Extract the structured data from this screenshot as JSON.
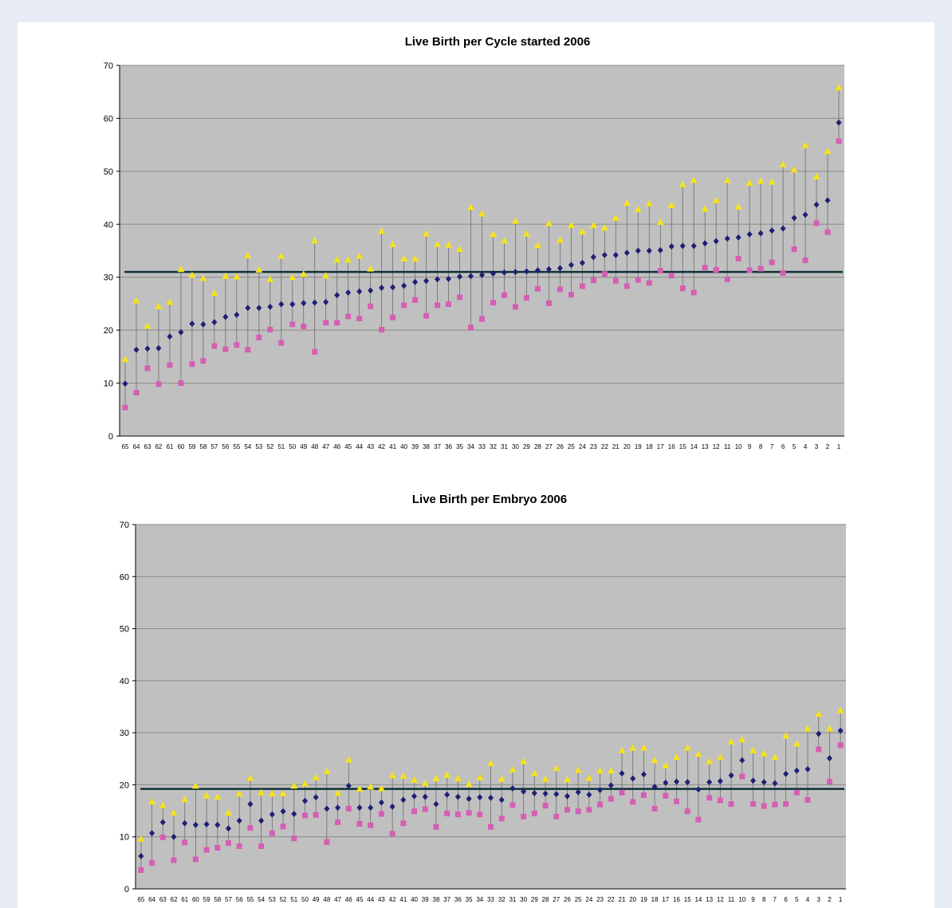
{
  "chart_data": [
    {
      "type": "scatter",
      "title": "Live Birth per Cycle started 2006",
      "xlabel": "",
      "ylabel": "",
      "ylim": [
        0,
        70
      ],
      "yticks": [
        0,
        10,
        20,
        30,
        40,
        50,
        60,
        70
      ],
      "grid": true,
      "legend": "none",
      "reference_line": 31,
      "categories": [
        65,
        64,
        63,
        62,
        61,
        60,
        59,
        58,
        57,
        56,
        55,
        54,
        53,
        52,
        51,
        50,
        49,
        48,
        47,
        46,
        45,
        44,
        43,
        42,
        41,
        40,
        39,
        38,
        37,
        36,
        35,
        34,
        33,
        32,
        31,
        30,
        29,
        28,
        27,
        26,
        25,
        24,
        23,
        22,
        21,
        20,
        19,
        18,
        17,
        16,
        15,
        14,
        13,
        12,
        11,
        10,
        9,
        8,
        7,
        6,
        5,
        4,
        3,
        2,
        1
      ],
      "series": [
        {
          "color": "#f5e31b",
          "marker": "triangle",
          "values": [
            14.5,
            25.6,
            20.8,
            24.5,
            25.3,
            31.5,
            30.4,
            29.8,
            27,
            30.2,
            30.1,
            34.1,
            31.4,
            29.6,
            34,
            30,
            30.6,
            36.9,
            30.3,
            33.3,
            33.3,
            34,
            31.6,
            38.7,
            36.2,
            33.5,
            33.5,
            38.2,
            36.2,
            36.1,
            35.3,
            43.2,
            42,
            38.1,
            36.9,
            40.6,
            38.2,
            36,
            40.2,
            37,
            39.8,
            38.6,
            39.8,
            39.3,
            41.2,
            44,
            42.8,
            43.9,
            40.4,
            43.6,
            47.5,
            48.3,
            42.9,
            44.5,
            48.3,
            43.3,
            47.8,
            48.2,
            48,
            51.3,
            50.3,
            54.9,
            49,
            53.8,
            65.8
          ]
        },
        {
          "color": "#1e2075",
          "marker": "diamond",
          "values": [
            9.9,
            16.3,
            16.5,
            16.6,
            18.8,
            19.6,
            21.2,
            21.1,
            21.5,
            22.5,
            22.9,
            24.2,
            24.2,
            24.4,
            24.9,
            24.9,
            25.1,
            25.2,
            25.3,
            26.6,
            27.1,
            27.3,
            27.5,
            28,
            28.1,
            28.4,
            29.1,
            29.3,
            29.6,
            29.7,
            30.1,
            30.2,
            30.4,
            30.7,
            30.9,
            31,
            31.1,
            31.3,
            31.5,
            31.7,
            32.3,
            32.7,
            33.8,
            34.2,
            34.2,
            34.6,
            35,
            35,
            35.1,
            35.8,
            35.9,
            35.9,
            36.4,
            36.8,
            37.3,
            37.5,
            38.1,
            38.3,
            38.8,
            39.2,
            41.2,
            41.8,
            43.7,
            44.5,
            59.2
          ]
        },
        {
          "color": "#d65eb4",
          "marker": "square",
          "values": [
            5.4,
            8.2,
            12.8,
            9.8,
            13.4,
            10,
            13.6,
            14.2,
            17,
            16.4,
            17.2,
            16.3,
            18.6,
            20.1,
            17.6,
            21.1,
            20.7,
            15.9,
            21.4,
            21.4,
            22.6,
            22.2,
            24.5,
            20.1,
            22.4,
            24.7,
            25.7,
            22.7,
            24.7,
            24.9,
            26.2,
            20.5,
            22.1,
            25.2,
            26.6,
            24.4,
            26.1,
            27.8,
            25.1,
            27.7,
            26.7,
            28.3,
            29.4,
            30.6,
            29.3,
            28.3,
            29.5,
            28.9,
            31.2,
            30.3,
            27.9,
            27.1,
            31.8,
            31.4,
            29.6,
            33.5,
            31.3,
            31.6,
            32.8,
            30.8,
            35.3,
            33.2,
            40.2,
            38.5,
            55.7
          ]
        }
      ]
    },
    {
      "type": "scatter",
      "title": "Live Birth per Embryo  2006",
      "xlabel": "",
      "ylabel": "",
      "ylim": [
        0,
        70
      ],
      "yticks": [
        0,
        10,
        20,
        30,
        40,
        50,
        60,
        70
      ],
      "grid": true,
      "legend": "none",
      "reference_line": 19.2,
      "categories": [
        65,
        64,
        63,
        62,
        61,
        60,
        59,
        58,
        57,
        56,
        55,
        54,
        53,
        52,
        51,
        50,
        49,
        48,
        47,
        46,
        45,
        44,
        43,
        42,
        41,
        40,
        39,
        38,
        37,
        36,
        35,
        34,
        33,
        32,
        31,
        30,
        29,
        28,
        27,
        26,
        25,
        24,
        23,
        22,
        21,
        20,
        19,
        18,
        17,
        16,
        15,
        14,
        13,
        12,
        11,
        10,
        9,
        8,
        7,
        6,
        5,
        4,
        3,
        2,
        1
      ],
      "series": [
        {
          "color": "#f5e31b",
          "marker": "triangle",
          "values": [
            9.6,
            16.8,
            16.1,
            14.6,
            17.2,
            19.8,
            17.9,
            17.7,
            14.6,
            18.3,
            21.3,
            18.5,
            18.3,
            18.3,
            19.8,
            20.2,
            21.4,
            22.6,
            18.4,
            24.8,
            19.2,
            19.6,
            19.3,
            21.8,
            21.7,
            20.9,
            20.3,
            21.2,
            21.9,
            21.2,
            20.1,
            21.4,
            24.1,
            21.1,
            22.9,
            24.5,
            22.2,
            21.1,
            23.2,
            21,
            22.8,
            21.3,
            22.7,
            22.7,
            26.6,
            27.1,
            27.1,
            24.7,
            23.7,
            25.3,
            27.1,
            25.9,
            24.5,
            25.3,
            28.3,
            28.7,
            26.6,
            26,
            25.3,
            29.4,
            27.9,
            30.8,
            33.6,
            30.8,
            34.3
          ]
        },
        {
          "color": "#1e2075",
          "marker": "diamond",
          "values": [
            6.3,
            10.7,
            12.8,
            10,
            12.6,
            12.3,
            12.4,
            12.3,
            11.6,
            13.1,
            16.3,
            13.1,
            14.3,
            14.9,
            14.4,
            16.9,
            17.6,
            15.4,
            15.6,
            19.8,
            15.6,
            15.6,
            16.6,
            15.8,
            17.1,
            17.8,
            17.7,
            16.3,
            18.1,
            17.7,
            17.3,
            17.6,
            17.5,
            17.1,
            19.3,
            18.7,
            18.4,
            18.3,
            18.2,
            17.8,
            18.6,
            18.1,
            19,
            19.9,
            22.2,
            21.2,
            22,
            19.6,
            20.4,
            20.6,
            20.5,
            19.1,
            20.5,
            20.7,
            21.8,
            24.7,
            20.8,
            20.5,
            20.3,
            22.1,
            22.7,
            23,
            29.8,
            25.1,
            30.4
          ]
        },
        {
          "color": "#d65eb4",
          "marker": "square",
          "values": [
            3.6,
            5,
            9.9,
            5.5,
            8.9,
            5.7,
            7.5,
            7.9,
            8.8,
            8.2,
            11.7,
            8.2,
            10.7,
            12,
            9.7,
            14.1,
            14.2,
            9,
            12.8,
            15.4,
            12.5,
            12.2,
            14.4,
            10.6,
            12.6,
            14.9,
            15.3,
            11.9,
            14.5,
            14.3,
            14.6,
            14.3,
            11.9,
            13.5,
            16.1,
            13.9,
            14.5,
            16,
            13.9,
            15.2,
            14.9,
            15.2,
            16.2,
            17.3,
            18.5,
            16.7,
            18,
            15.4,
            17.9,
            16.8,
            14.9,
            13.3,
            17.5,
            17,
            16.3,
            21.6,
            16.3,
            15.9,
            16.2,
            16.3,
            18.5,
            17.1,
            26.8,
            20.6,
            27.6
          ]
        }
      ]
    }
  ]
}
